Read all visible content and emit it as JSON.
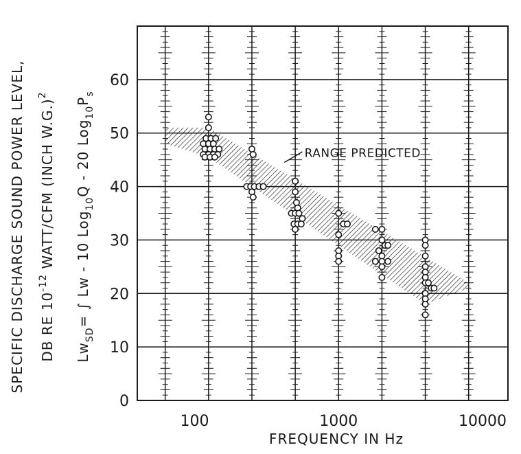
{
  "chart_data": {
    "type": "scatter",
    "title": "",
    "xlabel": "FREQUENCY IN Hz",
    "ylabel_line1": "SPECIFIC  DISCHARGE SOUND POWER LEVEL,",
    "ylabel_line2_a": "DB  RE  10",
    "ylabel_line2_sup": "-12",
    "ylabel_line2_b": " WATT/CFM (INCH W.G.)",
    "ylabel_line2_sup2": "2",
    "formula_a": "Lw",
    "formula_sub1": "SD",
    "formula_b": "= ∫ Lw - 10 Log",
    "formula_sub2": "10",
    "formula_c": "Q - 20 Log",
    "formula_sub3": "10",
    "formula_d": "P",
    "formula_sub4": "s",
    "x_scale": "log",
    "xlim": [
      40,
      15000
    ],
    "ylim": [
      0,
      70
    ],
    "x_ticks": [
      100,
      1000,
      10000
    ],
    "x_tick_labels": [
      "100",
      "1000",
      "10000"
    ],
    "y_ticks": [
      0,
      10,
      20,
      30,
      40,
      50,
      60
    ],
    "y_tick_labels": [
      "0",
      "10",
      "20",
      "30",
      "40",
      "50",
      "60"
    ],
    "grid": true,
    "annotation": "RANGE PREDICTED",
    "range_band": [
      {
        "x": 63,
        "y_low": 48,
        "y_high": 51
      },
      {
        "x": 8000,
        "y_low": 21,
        "y_high": 22
      },
      {
        "x": 125,
        "y_low": 45.5,
        "y_high": 51
      },
      {
        "x": 4000,
        "y_low": 18,
        "y_high": 26
      }
    ],
    "series": [
      {
        "points": [
          {
            "x": 125,
            "y": 53
          },
          {
            "x": 125,
            "y": 51
          },
          {
            "x": 120,
            "y": 49
          },
          {
            "x": 130,
            "y": 49
          },
          {
            "x": 140,
            "y": 49
          },
          {
            "x": 115,
            "y": 48
          },
          {
            "x": 125,
            "y": 48
          },
          {
            "x": 135,
            "y": 48
          },
          {
            "x": 118,
            "y": 47
          },
          {
            "x": 128,
            "y": 47
          },
          {
            "x": 138,
            "y": 47
          },
          {
            "x": 148,
            "y": 47
          },
          {
            "x": 115,
            "y": 46
          },
          {
            "x": 125,
            "y": 46
          },
          {
            "x": 135,
            "y": 46
          },
          {
            "x": 145,
            "y": 46
          },
          {
            "x": 118,
            "y": 45.5
          },
          {
            "x": 128,
            "y": 45.5
          },
          {
            "x": 138,
            "y": 45.5
          },
          {
            "x": 250,
            "y": 47
          },
          {
            "x": 255,
            "y": 46
          },
          {
            "x": 230,
            "y": 40
          },
          {
            "x": 245,
            "y": 40
          },
          {
            "x": 260,
            "y": 40
          },
          {
            "x": 280,
            "y": 40
          },
          {
            "x": 300,
            "y": 40
          },
          {
            "x": 250,
            "y": 39
          },
          {
            "x": 255,
            "y": 38
          },
          {
            "x": 500,
            "y": 41
          },
          {
            "x": 500,
            "y": 39
          },
          {
            "x": 510,
            "y": 37
          },
          {
            "x": 520,
            "y": 36
          },
          {
            "x": 470,
            "y": 35
          },
          {
            "x": 500,
            "y": 35
          },
          {
            "x": 530,
            "y": 35
          },
          {
            "x": 560,
            "y": 34
          },
          {
            "x": 490,
            "y": 33
          },
          {
            "x": 520,
            "y": 33
          },
          {
            "x": 550,
            "y": 33
          },
          {
            "x": 500,
            "y": 32
          },
          {
            "x": 1000,
            "y": 35
          },
          {
            "x": 1080,
            "y": 33
          },
          {
            "x": 1150,
            "y": 33
          },
          {
            "x": 1000,
            "y": 31
          },
          {
            "x": 1000,
            "y": 28
          },
          {
            "x": 1000,
            "y": 27
          },
          {
            "x": 1000,
            "y": 26
          },
          {
            "x": 1800,
            "y": 32
          },
          {
            "x": 2000,
            "y": 32
          },
          {
            "x": 2000,
            "y": 30
          },
          {
            "x": 2100,
            "y": 29
          },
          {
            "x": 2200,
            "y": 29
          },
          {
            "x": 1900,
            "y": 28
          },
          {
            "x": 2000,
            "y": 27
          },
          {
            "x": 1800,
            "y": 26
          },
          {
            "x": 2000,
            "y": 26
          },
          {
            "x": 2200,
            "y": 26
          },
          {
            "x": 2000,
            "y": 25
          },
          {
            "x": 2000,
            "y": 23
          },
          {
            "x": 4000,
            "y": 30
          },
          {
            "x": 4000,
            "y": 29
          },
          {
            "x": 4000,
            "y": 27
          },
          {
            "x": 4000,
            "y": 25
          },
          {
            "x": 4000,
            "y": 24
          },
          {
            "x": 4000,
            "y": 23
          },
          {
            "x": 4000,
            "y": 22
          },
          {
            "x": 4200,
            "y": 22
          },
          {
            "x": 4400,
            "y": 21
          },
          {
            "x": 4600,
            "y": 21
          },
          {
            "x": 4000,
            "y": 20
          },
          {
            "x": 4000,
            "y": 19
          },
          {
            "x": 4000,
            "y": 18
          },
          {
            "x": 4000,
            "y": 16
          }
        ]
      }
    ],
    "colors": {
      "ink": "#1a1a1a",
      "background": "#ffffff"
    }
  }
}
